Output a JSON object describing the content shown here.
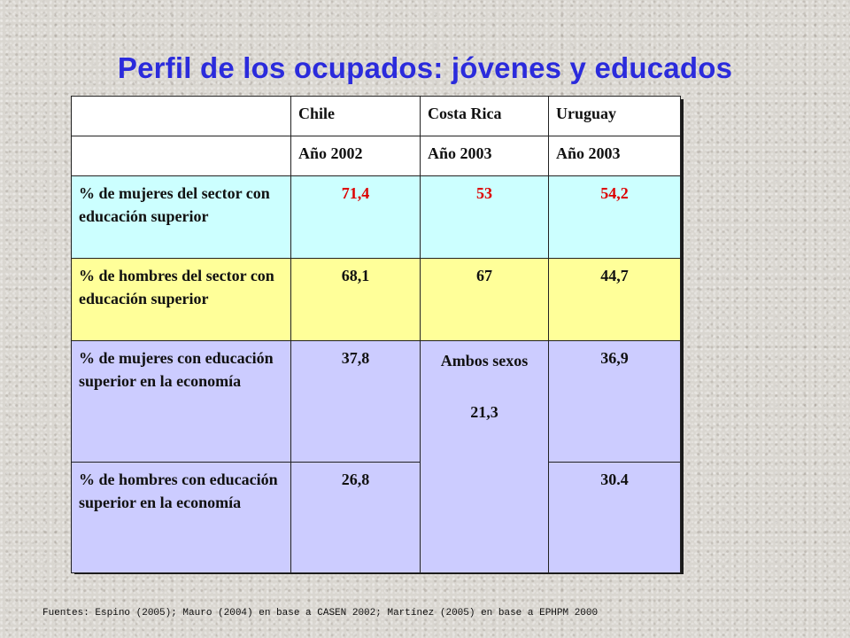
{
  "title": "Perfil de los ocupados: jóvenes y educados",
  "table": {
    "countries": [
      "Chile",
      "Costa Rica",
      "Uruguay"
    ],
    "years": [
      "Año 2002",
      "Año 2003",
      "Año 2003"
    ],
    "rows": [
      {
        "label": "% de mujeres del sector con educación superior",
        "values": [
          "71,4",
          "53",
          "54,2"
        ]
      },
      {
        "label": "% de hombres del sector con educación superior",
        "values": [
          "68,1",
          "67",
          "44,7"
        ]
      },
      {
        "label": "% de mujeres con educación superior en la economía",
        "values": [
          "37,8",
          "36,9"
        ]
      },
      {
        "label": "% de hombres con educación superior en la economía",
        "values": [
          "26,8",
          "30.4"
        ]
      }
    ],
    "merged_costa_rica": {
      "label": "Ambos sexos",
      "value": "21,3"
    },
    "highlight_color": "#dd0000"
  },
  "source": "Fuentes: Espino (2005); Mauro (2004) en base a CASEN 2002; Martínez (2005) en base a EPHPM 2000"
}
